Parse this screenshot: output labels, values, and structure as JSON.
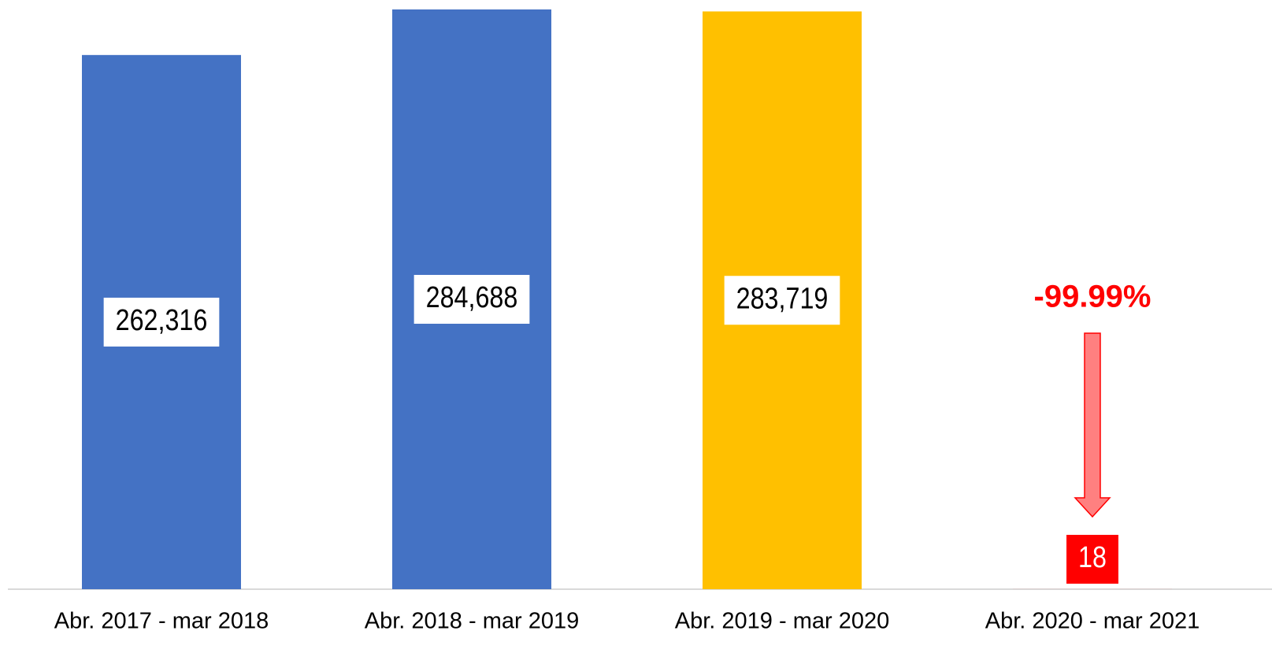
{
  "chart_data": {
    "type": "bar",
    "categories": [
      "Abr. 2017 - mar 2018",
      "Abr. 2018 - mar 2019",
      "Abr. 2019 - mar 2020",
      "Abr. 2020 - mar 2021"
    ],
    "values": [
      262316,
      284688,
      283719,
      18
    ],
    "value_labels": [
      "262,316",
      "284,688",
      "283,719",
      "18"
    ],
    "colors": [
      "#4472c4",
      "#4472c4",
      "#ffc000",
      "#ff0000"
    ],
    "annotation": "-99.99%",
    "annotation_color": "#ff0000"
  }
}
